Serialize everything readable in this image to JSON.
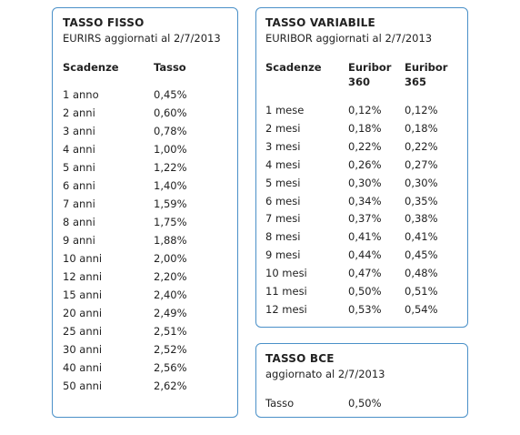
{
  "fisso": {
    "title": "TASSO FISSO",
    "subtitle": "EURIRS aggiornati al 2/7/2013",
    "headers": [
      "Scadenze",
      "Tasso"
    ],
    "rows": [
      [
        "1 anno",
        "0,45%"
      ],
      [
        "2 anni",
        "0,60%"
      ],
      [
        "3 anni",
        "0,78%"
      ],
      [
        "4 anni",
        "1,00%"
      ],
      [
        "5 anni",
        "1,22%"
      ],
      [
        "6 anni",
        "1,40%"
      ],
      [
        "7 anni",
        "1,59%"
      ],
      [
        "8 anni",
        "1,75%"
      ],
      [
        "9 anni",
        "1,88%"
      ],
      [
        "10 anni",
        "2,00%"
      ],
      [
        "12 anni",
        "2,20%"
      ],
      [
        "15 anni",
        "2,40%"
      ],
      [
        "20 anni",
        "2,49%"
      ],
      [
        "25 anni",
        "2,51%"
      ],
      [
        "30 anni",
        "2,52%"
      ],
      [
        "40 anni",
        "2,56%"
      ],
      [
        "50 anni",
        "2,62%"
      ]
    ]
  },
  "variabile": {
    "title": "TASSO VARIABILE",
    "subtitle": "EURIBOR aggiornati al 2/7/2013",
    "headers": [
      "Scadenze",
      "Euribor\n360",
      "Euribor\n365"
    ],
    "rows": [
      [
        "1 mese",
        "0,12%",
        "0,12%"
      ],
      [
        "2 mesi",
        "0,18%",
        "0,18%"
      ],
      [
        "3 mesi",
        "0,22%",
        "0,22%"
      ],
      [
        "4 mesi",
        "0,26%",
        "0,27%"
      ],
      [
        "5 mesi",
        "0,30%",
        "0,30%"
      ],
      [
        "6 mesi",
        "0,34%",
        "0,35%"
      ],
      [
        "7 mesi",
        "0,37%",
        "0,38%"
      ],
      [
        "8 mesi",
        "0,41%",
        "0,41%"
      ],
      [
        "9 mesi",
        "0,44%",
        "0,45%"
      ],
      [
        "10 mesi",
        "0,47%",
        "0,48%"
      ],
      [
        "11 mesi",
        "0,50%",
        "0,51%"
      ],
      [
        "12 mesi",
        "0,53%",
        "0,54%"
      ]
    ]
  },
  "bce": {
    "title": "TASSO BCE",
    "subtitle": "aggiornato al 2/7/2013",
    "label": "Tasso",
    "value": "0,50%"
  }
}
